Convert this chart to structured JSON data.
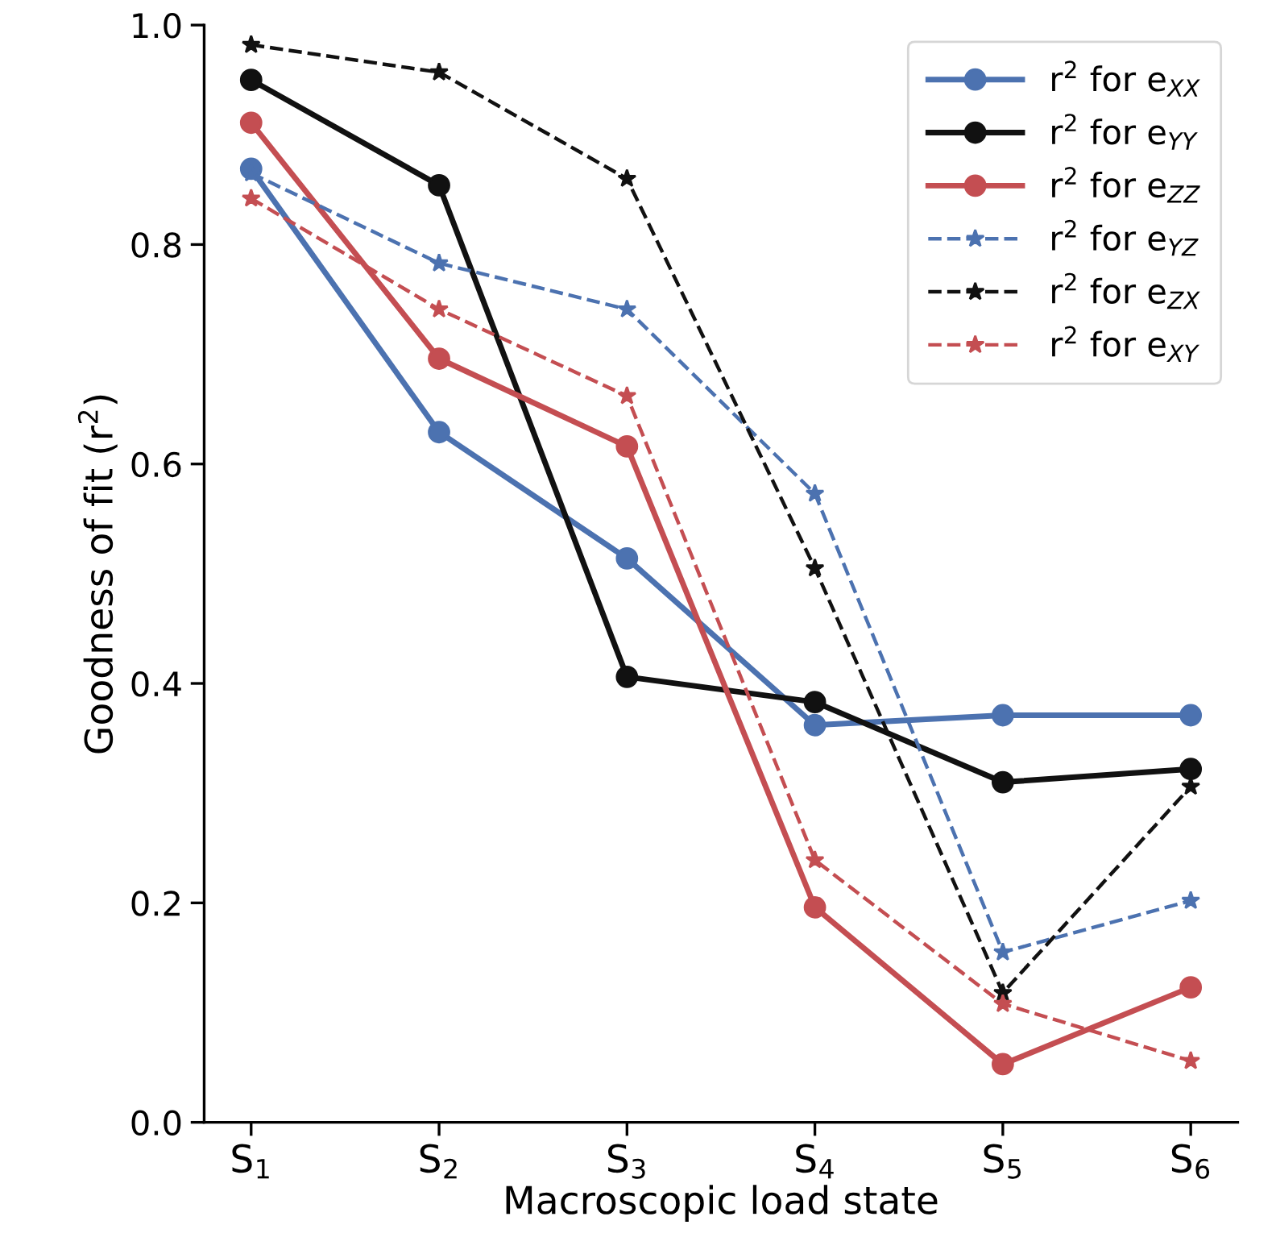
{
  "chart_data": {
    "type": "line",
    "xlabel": "Macroscopic load state",
    "ylabel": "Goodness of fit (r$^{2}$)",
    "categories": [
      "S$_{1}$",
      "S$_{2}$",
      "S$_{3}$",
      "S$_{4}$",
      "S$_{5}$",
      "S$_{6}$"
    ],
    "ylim": [
      0.0,
      1.0
    ],
    "yticks": [
      {
        "value": 0,
        "label": "0.0"
      },
      0.2,
      0.4,
      0.6,
      0.8,
      {
        "value": 1,
        "label": "1.0"
      }
    ],
    "legend": "top right",
    "series": [
      {
        "name": "r$^{2}$ for e$_{XX}$",
        "color": "#4c72b0",
        "marker": "circle",
        "line_style": "solid",
        "values": [
          0.869,
          0.629,
          0.514,
          0.362,
          0.371,
          0.371
        ]
      },
      {
        "name": "r$^{2}$ for e$_{YY}$",
        "color": "#111111",
        "marker": "circle",
        "line_style": "solid",
        "values": [
          0.95,
          0.854,
          0.406,
          0.383,
          0.31,
          0.322
        ]
      },
      {
        "name": "r$^{2}$ for e$_{ZZ}$",
        "color": "#c44e52",
        "marker": "circle",
        "line_style": "solid",
        "values": [
          0.911,
          0.696,
          0.616,
          0.196,
          0.053,
          0.123
        ]
      },
      {
        "name": "r$^{2}$ for e$_{YZ}$",
        "color": "#4c72b0",
        "marker": "star",
        "line_style": "dashed",
        "values": [
          0.865,
          0.783,
          0.741,
          0.573,
          0.155,
          0.202
        ]
      },
      {
        "name": "r$^{2}$ for e$_{ZX}$",
        "color": "#111111",
        "marker": "star",
        "line_style": "dashed",
        "values": [
          0.982,
          0.957,
          0.86,
          0.505,
          0.118,
          0.306
        ]
      },
      {
        "name": "r$^{2}$ for e$_{XY}$",
        "color": "#c44e52",
        "marker": "star",
        "line_style": "dashed",
        "values": [
          0.842,
          0.741,
          0.662,
          0.239,
          0.108,
          0.056
        ]
      }
    ]
  }
}
